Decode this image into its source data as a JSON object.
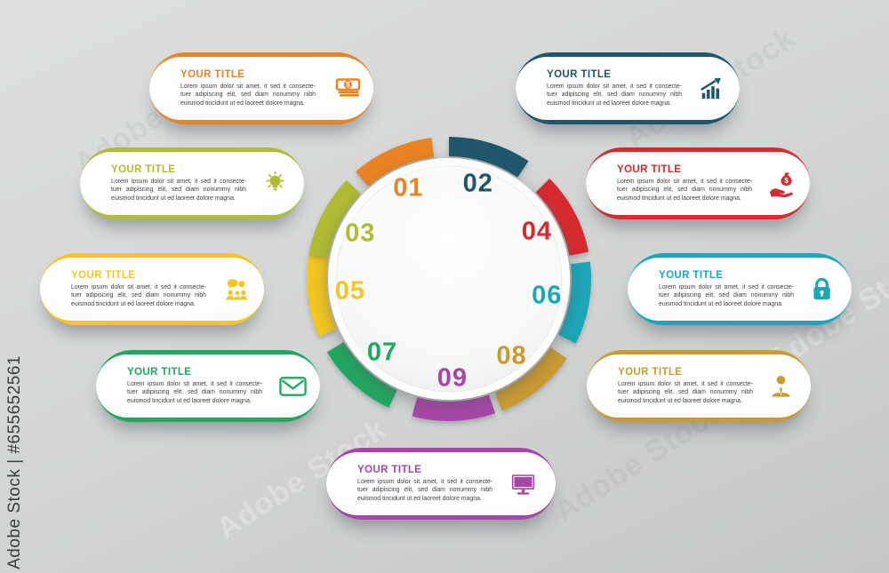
{
  "watermark": {
    "side_label": "Adobe Stock | #655652561",
    "diagonal_label": "Adobe Stock"
  },
  "diagram": {
    "type": "circular-process-infographic",
    "steps": 9,
    "segments": [
      {
        "number": "01",
        "color": "#EA8322",
        "angle": -24,
        "icon": "money-bills-icon"
      },
      {
        "number": "02",
        "color": "#1E566C",
        "angle": 17,
        "icon": "growth-chart-icon"
      },
      {
        "number": "04",
        "color": "#D62A2E",
        "angle": 62,
        "icon": "money-bag-hand-icon"
      },
      {
        "number": "06",
        "color": "#1BA7B8",
        "angle": 100,
        "icon": "lock-icon"
      },
      {
        "number": "08",
        "color": "#CB9A30",
        "angle": 141,
        "icon": "businessman-icon"
      },
      {
        "number": "09",
        "color": "#A846A8",
        "angle": 178,
        "icon": "monitor-icon"
      },
      {
        "number": "07",
        "color": "#1FA85F",
        "angle": 222,
        "icon": "envelope-icon"
      },
      {
        "number": "05",
        "color": "#F3C71F",
        "angle": 263,
        "icon": "people-discussion-icon"
      },
      {
        "number": "03",
        "color": "#B0BC33",
        "angle": 297,
        "icon": "lightbulb-icon"
      }
    ]
  },
  "cards": [
    {
      "number": "01",
      "title": "YOUR TITLE",
      "color": "#EA8322",
      "icon": "money-bills-icon",
      "body": "Lorem ipsum dolor sit amet, it sed it consecte-tuer adipiscing elit, sed diam nonummy nibh euismod tincidunt ut ed laoreet dolore magna."
    },
    {
      "number": "02",
      "title": "YOUR TITLE",
      "color": "#1E566C",
      "icon": "growth-chart-icon",
      "body": "Lorem ipsum dolor sit amet, it sed it consecte-tuer adipiscing elit, sed diam nonummy nibh euismod tincidunt ut ed laoreet dolore magna."
    },
    {
      "number": "03",
      "title": "YOUR TITLE",
      "color": "#B0BC33",
      "icon": "lightbulb-icon",
      "body": "Lorem ipsum dolor sit amet, it sed it consecte-tuer adipiscing elit, sed diam nonummy nibh euismod tincidunt ut ed laoreet dolore magna."
    },
    {
      "number": "04",
      "title": "YOUR TITLE",
      "color": "#D62A2E",
      "icon": "money-bag-hand-icon",
      "body": "Lorem ipsum dolor sit amet, it sed it consecte-tuer adipiscing elit, sed diam nonummy nibh euismod tincidunt ut ed laoreet dolore magna."
    },
    {
      "number": "05",
      "title": "YOUR TITLE",
      "color": "#F3C71F",
      "icon": "people-discussion-icon",
      "body": "Lorem ipsum dolor sit amet, it sed it consecte-tuer adipiscing elit, sed diam nonummy nibh euismod tincidunt ut ed laoreet dolore magna."
    },
    {
      "number": "06",
      "title": "YOUR TITLE",
      "color": "#1BA7B8",
      "icon": "lock-icon",
      "body": "Lorem ipsum dolor sit amet, it sed it consecte-tuer adipiscing elit, sed diam nonummy nibh euismod tincidunt ut ed laoreet dolore magna."
    },
    {
      "number": "07",
      "title": "YOUR TITLE",
      "color": "#1FA85F",
      "icon": "envelope-icon",
      "body": "Lorem ipsum dolor sit amet, it sed it consecte-tuer adipiscing elit, sed diam nonummy nibh euismod tincidunt ut ed laoreet dolore magna."
    },
    {
      "number": "08",
      "title": "YOUR TITLE",
      "color": "#CB9A30",
      "icon": "businessman-icon",
      "body": "Lorem ipsum dolor sit amet, it sed it consecte-tuer adipiscing elit, sed diam nonummy nibh euismod tincidunt ut ed laoreet dolore magna."
    },
    {
      "number": "09",
      "title": "YOUR TITLE",
      "color": "#A846A8",
      "icon": "monitor-icon",
      "body": "Lorem ipsum dolor sit amet, it sed it consecte-tuer adipiscing elit, sed diam nonummy nibh euismod tincidunt ut ed laoreet dolore magna."
    }
  ]
}
